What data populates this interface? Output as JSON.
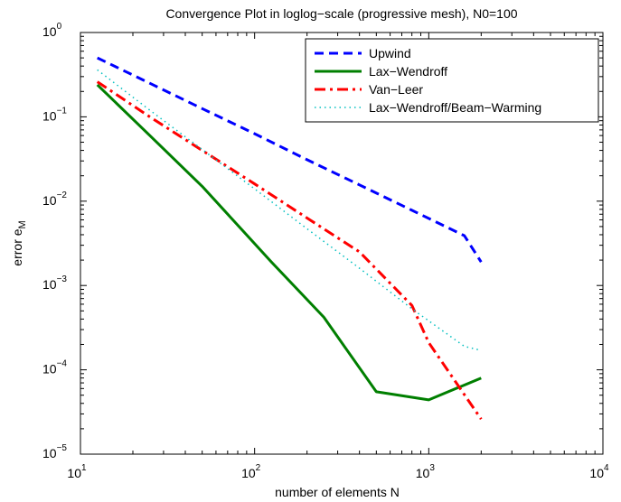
{
  "chart_data": {
    "type": "line",
    "title": "Convergence Plot in loglog−scale (progressive mesh), N0=100",
    "xlabel": "number of elements N",
    "ylabel_main": "error e",
    "ylabel_sub": "M",
    "x_scale": "log",
    "y_scale": "log",
    "xlim": [
      10,
      10000
    ],
    "ylim": [
      1e-05,
      1
    ],
    "x_ticks": [
      {
        "base": "10",
        "exp": "1",
        "value": 10
      },
      {
        "base": "10",
        "exp": "2",
        "value": 100
      },
      {
        "base": "10",
        "exp": "3",
        "value": 1000
      },
      {
        "base": "10",
        "exp": "4",
        "value": 10000
      }
    ],
    "y_ticks": [
      {
        "base": "10",
        "exp": "0",
        "value": 1
      },
      {
        "base": "10",
        "exp": "−1",
        "value": 0.1
      },
      {
        "base": "10",
        "exp": "−2",
        "value": 0.01
      },
      {
        "base": "10",
        "exp": "−3",
        "value": 0.001
      },
      {
        "base": "10",
        "exp": "−4",
        "value": 0.0001
      },
      {
        "base": "10",
        "exp": "−5",
        "value": 1e-05
      }
    ],
    "grid": false,
    "legend_position": "top-right",
    "series": [
      {
        "name": "Upwind",
        "color": "#0000ff",
        "style": "dashed",
        "x": [
          12.5,
          25,
          50,
          100,
          200,
          400,
          800,
          1600,
          2000
        ],
        "y": [
          0.5,
          0.25,
          0.125,
          0.063,
          0.031,
          0.0156,
          0.0078,
          0.0039,
          0.0019
        ]
      },
      {
        "name": "Lax−Wendroff",
        "color": "#007f00",
        "style": "solid",
        "x": [
          12.5,
          25,
          50,
          125,
          250,
          500,
          1000,
          2000
        ],
        "y": [
          0.24,
          0.06,
          0.015,
          0.0019,
          0.00042,
          5.5e-05,
          4.4e-05,
          8e-05
        ]
      },
      {
        "name": "Van−Leer",
        "color": "#ff0000",
        "style": "dashdot",
        "x": [
          12.5,
          25,
          50,
          100,
          200,
          400,
          800,
          1000,
          2000
        ],
        "y": [
          0.26,
          0.1,
          0.04,
          0.016,
          0.0063,
          0.0025,
          0.00058,
          0.00021,
          2.6e-05
        ]
      },
      {
        "name": "Lax−Wendroff/Beam−Warming",
        "color": "#00bfbf",
        "style": "dotted",
        "x": [
          12.5,
          25,
          50,
          100,
          200,
          400,
          800,
          1600,
          2000
        ],
        "y": [
          0.36,
          0.12,
          0.041,
          0.014,
          0.0047,
          0.0016,
          0.00053,
          0.00019,
          0.00017
        ]
      }
    ]
  }
}
